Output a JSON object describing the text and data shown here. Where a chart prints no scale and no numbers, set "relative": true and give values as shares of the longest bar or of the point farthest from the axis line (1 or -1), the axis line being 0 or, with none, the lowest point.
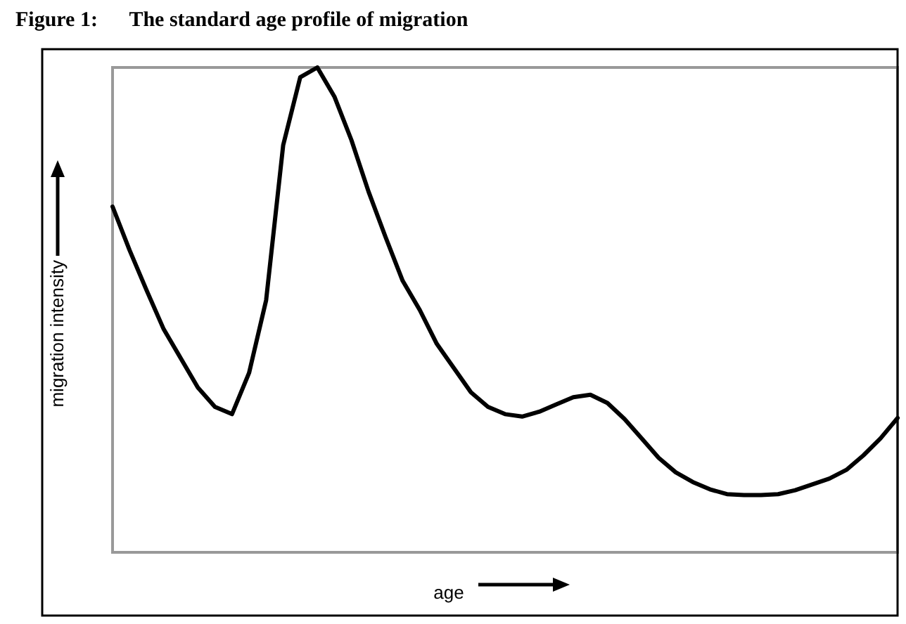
{
  "chart_data": {
    "type": "line",
    "title": "Figure 1:      The standard age profile of migration",
    "xlabel": "age",
    "ylabel": "migration intensity",
    "relative": true,
    "grid": false,
    "marker": "none",
    "line_style": "solid",
    "categories": [
      null,
      null,
      null,
      null,
      null,
      null,
      null,
      null,
      null,
      null,
      null,
      null,
      null,
      null,
      null,
      null,
      null,
      null,
      null,
      null,
      null,
      null,
      null,
      null,
      null,
      null,
      null,
      null,
      null,
      null,
      null,
      null,
      null,
      null,
      null,
      null,
      null,
      null,
      null,
      null,
      null,
      null,
      null,
      null,
      null,
      null,
      null
    ],
    "series": [
      {
        "color": "#000000",
        "values": [
          0.713,
          0.623,
          0.54,
          0.46,
          0.4,
          0.34,
          0.3,
          0.285,
          0.37,
          0.52,
          0.84,
          0.98,
          1,
          0.94,
          0.85,
          0.744,
          0.65,
          0.56,
          0.5,
          0.43,
          0.38,
          0.33,
          0.3,
          0.285,
          0.28,
          0.29,
          0.305,
          0.32,
          0.325,
          0.308,
          0.275,
          0.235,
          0.195,
          0.165,
          0.145,
          0.13,
          0.12,
          0.118,
          0.118,
          0.12,
          0.128,
          0.14,
          0.152,
          0.17,
          0.2,
          0.235,
          0.277
        ]
      }
    ]
  }
}
